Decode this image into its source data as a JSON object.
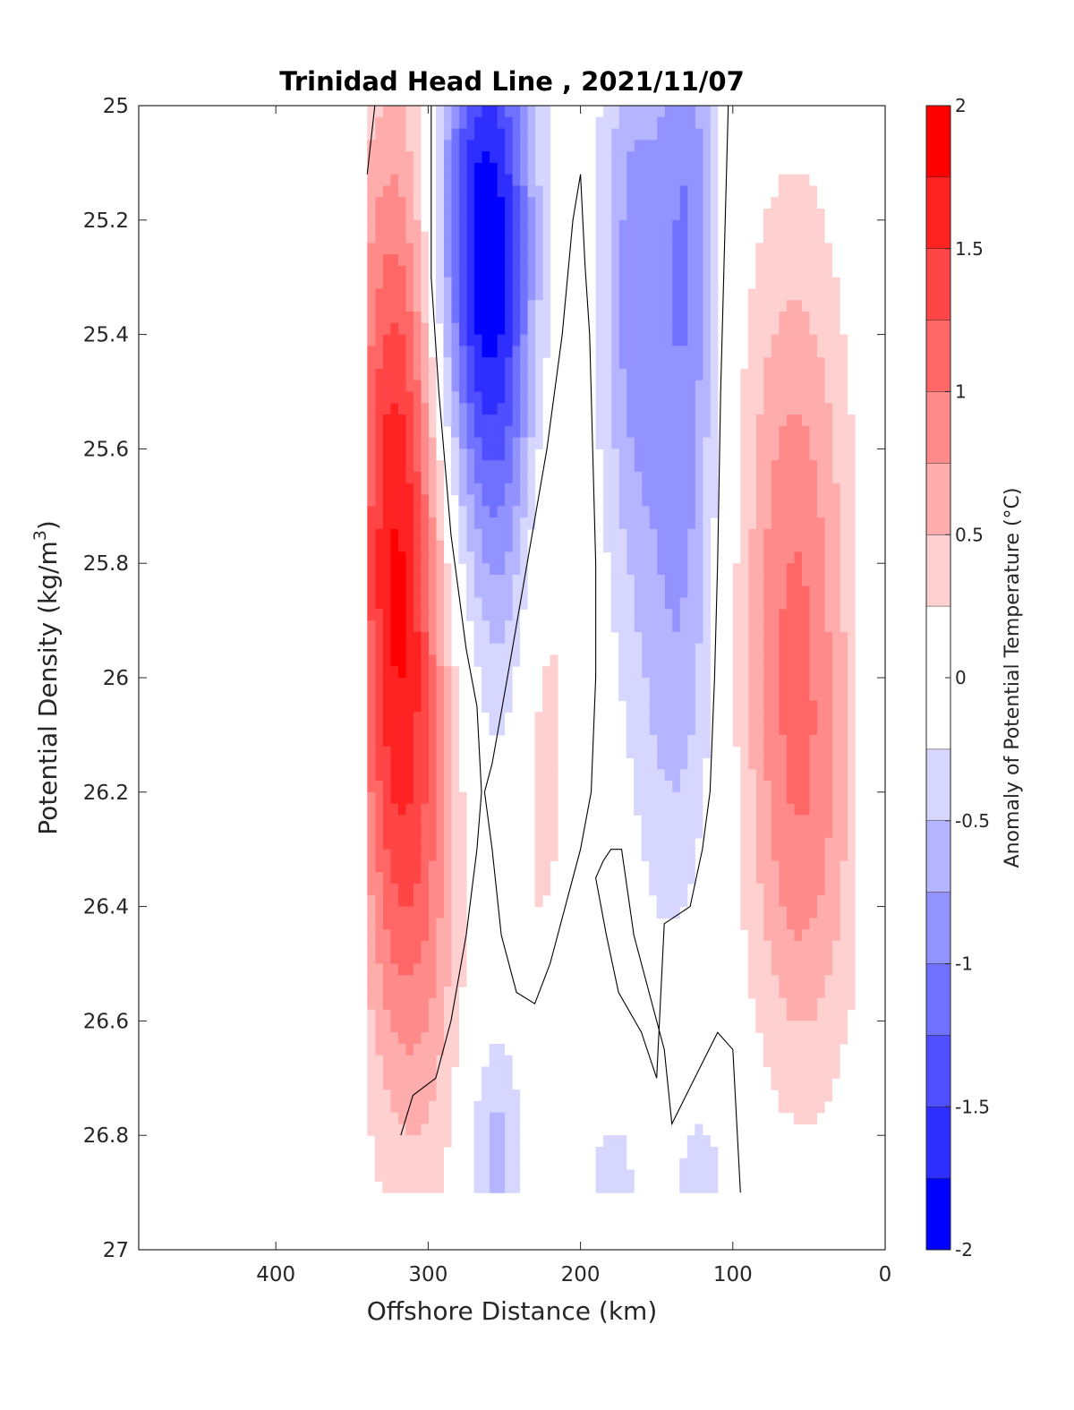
{
  "chart_data": {
    "type": "contour",
    "title": "Trinidad Head Line , 2021/11/07",
    "xlabel": "Offshore Distance (km)",
    "ylabel": "Potential Density (kg/m",
    "ylabel_sup": "3",
    "ylabel_close": ")",
    "xlim": [
      490,
      0
    ],
    "ylim": [
      27,
      25
    ],
    "x_reversed": true,
    "y_reversed": true,
    "xticks": [
      400,
      300,
      200,
      100,
      0
    ],
    "yticks": [
      25,
      25.2,
      25.4,
      25.6,
      25.8,
      26,
      26.2,
      26.4,
      26.6,
      26.8,
      27
    ],
    "ytick_labels": [
      "25",
      "25.2",
      "25.4",
      "25.6",
      "25.8",
      "26",
      "26.2",
      "26.4",
      "26.6",
      "26.8",
      "27"
    ],
    "colorbar": {
      "label": "Anomaly of Potential Temperature (°C)",
      "range": [
        -2,
        2
      ],
      "ticks": [
        2,
        1.5,
        1,
        0.5,
        0,
        -0.5,
        -1,
        -1.5,
        -2
      ],
      "tick_labels": [
        "2",
        "1.5",
        "1",
        "0.5",
        "0",
        "-0.5",
        "-1",
        "-1.5",
        "-2"
      ],
      "levels": [
        {
          "lo": 1.75,
          "hi": 2.0,
          "color": "#ff0000"
        },
        {
          "lo": 1.5,
          "hi": 1.75,
          "color": "#ff2222"
        },
        {
          "lo": 1.25,
          "hi": 1.5,
          "color": "#ff4545"
        },
        {
          "lo": 1.0,
          "hi": 1.25,
          "color": "#ff6767"
        },
        {
          "lo": 0.75,
          "hi": 1.0,
          "color": "#ff8a8a"
        },
        {
          "lo": 0.5,
          "hi": 0.75,
          "color": "#ffacac"
        },
        {
          "lo": 0.25,
          "hi": 0.5,
          "color": "#ffd0d0"
        },
        {
          "lo": -0.25,
          "hi": 0.25,
          "color": "#ffffff"
        },
        {
          "lo": -0.5,
          "hi": -0.25,
          "color": "#d6d6ff"
        },
        {
          "lo": -0.75,
          "hi": -0.5,
          "color": "#b5b5ff"
        },
        {
          "lo": -1.0,
          "hi": -0.75,
          "color": "#9393ff"
        },
        {
          "lo": -1.25,
          "hi": -1.0,
          "color": "#7171ff"
        },
        {
          "lo": -1.5,
          "hi": -1.25,
          "color": "#4f4fff"
        },
        {
          "lo": -1.75,
          "hi": -1.5,
          "color": "#2e2eff"
        },
        {
          "lo": -2.0,
          "hi": -1.75,
          "color": "#0000ff"
        }
      ]
    },
    "anomaly_features": [
      {
        "x": 322,
        "y": 25.72,
        "value": 1.6,
        "sx": 20,
        "sy": 0.5
      },
      {
        "x": 307,
        "y": 26.35,
        "value": 0.7,
        "sx": 22,
        "sy": 0.4
      },
      {
        "x": 263,
        "y": 25.22,
        "value": -1.85,
        "sx": 22,
        "sy": 0.32
      },
      {
        "x": 250,
        "y": 25.72,
        "value": -0.55,
        "sx": 20,
        "sy": 0.35
      },
      {
        "x": 225,
        "y": 26.05,
        "value": 0.45,
        "sx": 14,
        "sy": 0.45
      },
      {
        "x": 165,
        "y": 25.3,
        "value": -0.85,
        "sx": 16,
        "sy": 0.38
      },
      {
        "x": 130,
        "y": 25.2,
        "value": -0.9,
        "sx": 14,
        "sy": 0.45
      },
      {
        "x": 140,
        "y": 26.0,
        "value": -0.5,
        "sx": 20,
        "sy": 0.35
      },
      {
        "x": 60,
        "y": 25.85,
        "value": 0.95,
        "sx": 25,
        "sy": 0.45
      },
      {
        "x": 50,
        "y": 26.35,
        "value": 0.4,
        "sx": 25,
        "sy": 0.3
      },
      {
        "x": 255,
        "y": 26.82,
        "value": -0.6,
        "sx": 13,
        "sy": 0.15
      },
      {
        "x": 210,
        "y": 26.55,
        "value": -0.3,
        "sx": 10,
        "sy": 0.12
      },
      {
        "x": 180,
        "y": 26.88,
        "value": -0.35,
        "sx": 15,
        "sy": 0.1
      },
      {
        "x": 120,
        "y": 26.88,
        "value": -0.35,
        "sx": 15,
        "sy": 0.1
      },
      {
        "x": 115,
        "y": 26.45,
        "value": 0.3,
        "sx": 6,
        "sy": 0.06
      }
    ],
    "data_extent": {
      "x": [
        20,
        340
      ],
      "y": [
        25,
        26.9
      ]
    },
    "zero_contours": [
      [
        [
          340,
          25.12
        ],
        [
          335,
          25.0
        ]
      ],
      [
        [
          318,
          26.8
        ],
        [
          310,
          26.73
        ],
        [
          295,
          26.7
        ],
        [
          285,
          26.6
        ],
        [
          275,
          26.45
        ],
        [
          268,
          26.3
        ],
        [
          265,
          26.2
        ],
        [
          268,
          26.05
        ],
        [
          275,
          25.95
        ],
        [
          285,
          25.75
        ],
        [
          293,
          25.5
        ],
        [
          298,
          25.3
        ],
        [
          298,
          25.0
        ]
      ],
      [
        [
          263,
          26.2
        ],
        [
          258,
          26.3
        ],
        [
          252,
          26.45
        ],
        [
          242,
          26.55
        ],
        [
          230,
          26.57
        ],
        [
          220,
          26.5
        ],
        [
          210,
          26.4
        ],
        [
          200,
          26.3
        ],
        [
          193,
          26.2
        ],
        [
          190,
          26.0
        ],
        [
          190,
          25.8
        ],
        [
          192,
          25.6
        ],
        [
          194,
          25.4
        ],
        [
          197,
          25.28
        ],
        [
          200,
          25.12
        ],
        [
          205,
          25.2
        ],
        [
          212,
          25.4
        ],
        [
          222,
          25.6
        ],
        [
          235,
          25.8
        ],
        [
          248,
          26.0
        ],
        [
          258,
          26.15
        ],
        [
          263,
          26.2
        ]
      ],
      [
        [
          95,
          26.9
        ],
        [
          97,
          26.8
        ],
        [
          100,
          26.65
        ],
        [
          110,
          26.62
        ],
        [
          125,
          26.7
        ],
        [
          140,
          26.78
        ],
        [
          145,
          26.65
        ],
        [
          155,
          26.55
        ],
        [
          165,
          26.45
        ],
        [
          173,
          26.3
        ],
        [
          180,
          26.3
        ],
        [
          185,
          26.32
        ],
        [
          190,
          26.35
        ],
        [
          183,
          26.45
        ],
        [
          175,
          26.55
        ],
        [
          160,
          26.62
        ],
        [
          150,
          26.7
        ],
        [
          145,
          26.43
        ],
        [
          128,
          26.4
        ],
        [
          120,
          26.3
        ],
        [
          115,
          26.2
        ],
        [
          112,
          26.0
        ],
        [
          110,
          25.8
        ],
        [
          108,
          25.5
        ],
        [
          105,
          25.2
        ],
        [
          103,
          25.0
        ]
      ]
    ]
  }
}
